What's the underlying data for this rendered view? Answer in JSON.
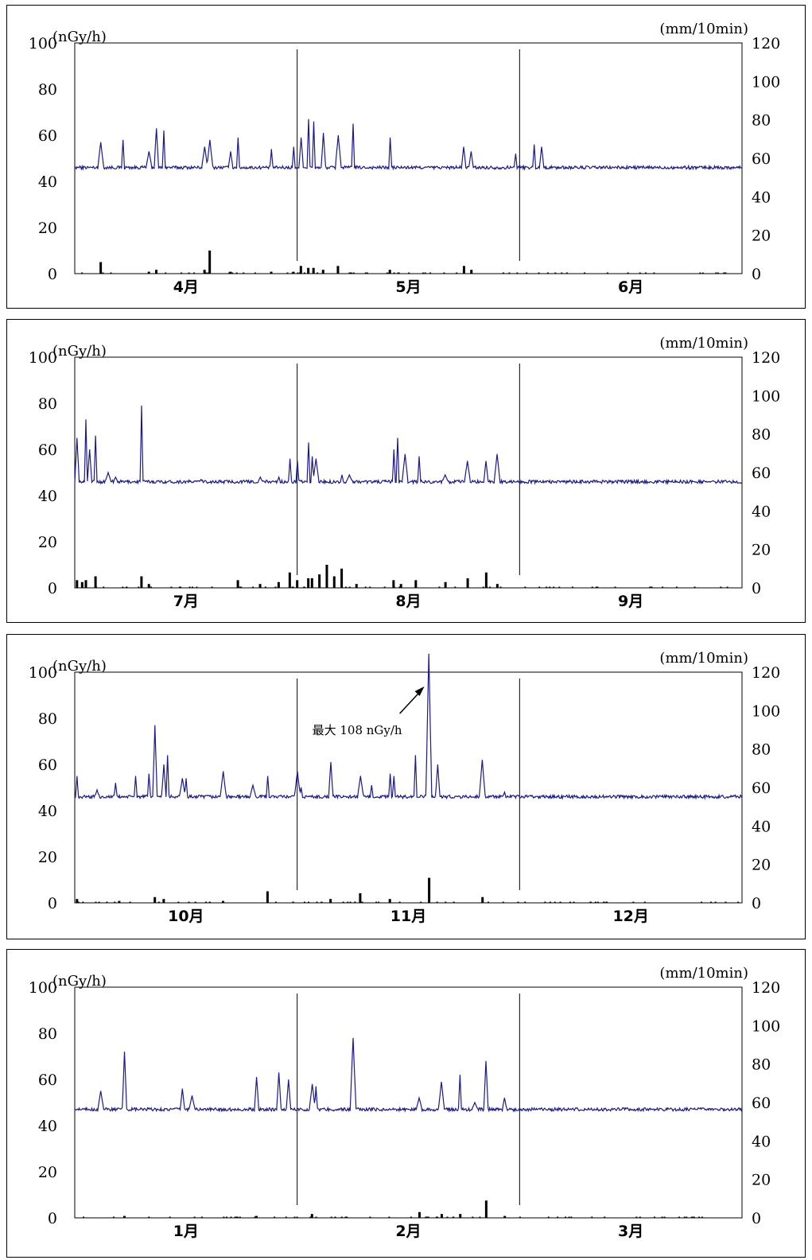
{
  "chart_data": [
    {
      "type": "line",
      "left_unit": "(nGy/h)",
      "right_unit": "(mm/10min)",
      "left_ticks": [
        "100",
        "80",
        "60",
        "40",
        "20",
        "0"
      ],
      "right_ticks": [
        "120",
        "100",
        "80",
        "60",
        "40",
        "20",
        "0"
      ],
      "ylim_left": [
        0,
        100
      ],
      "ylim_right": [
        0,
        120
      ],
      "months": [
        "4月",
        "5月",
        "6月"
      ],
      "colors": {
        "dose": "#1a1a8c",
        "rain": "#000000"
      },
      "baseline": 46,
      "dose_spikes": [
        [
          3.5,
          57
        ],
        [
          6.5,
          58
        ],
        [
          10,
          53
        ],
        [
          11,
          63
        ],
        [
          12,
          62
        ],
        [
          17.5,
          55
        ],
        [
          18.2,
          58
        ],
        [
          21,
          53
        ],
        [
          22,
          59
        ],
        [
          26.5,
          54
        ],
        [
          29.5,
          55
        ],
        [
          30.5,
          59
        ],
        [
          31.5,
          67
        ],
        [
          32.2,
          66
        ],
        [
          33.5,
          61
        ],
        [
          35.5,
          60
        ],
        [
          37.5,
          65
        ],
        [
          42.5,
          59
        ],
        [
          52.5,
          55
        ],
        [
          53.5,
          53
        ],
        [
          59.5,
          52
        ],
        [
          62,
          56
        ],
        [
          63,
          55
        ]
      ],
      "rain": [
        [
          3.5,
          6
        ],
        [
          10,
          1
        ],
        [
          11,
          2
        ],
        [
          17.5,
          2
        ],
        [
          18.2,
          12
        ],
        [
          21,
          1
        ],
        [
          26.5,
          1
        ],
        [
          29.5,
          1
        ],
        [
          30.5,
          4
        ],
        [
          31.5,
          3
        ],
        [
          32.2,
          3
        ],
        [
          33.5,
          2
        ],
        [
          35.5,
          4
        ],
        [
          42.5,
          2
        ],
        [
          52.5,
          4
        ],
        [
          53.5,
          2
        ]
      ],
      "vlines": [
        30,
        60
      ]
    },
    {
      "type": "line",
      "left_unit": "(nGy/h)",
      "right_unit": "(mm/10min)",
      "left_ticks": [
        "100",
        "80",
        "60",
        "40",
        "20",
        "0"
      ],
      "right_ticks": [
        "120",
        "100",
        "80",
        "60",
        "40",
        "20",
        "0"
      ],
      "ylim_left": [
        0,
        100
      ],
      "ylim_right": [
        0,
        120
      ],
      "months": [
        "7月",
        "8月",
        "9月"
      ],
      "colors": {
        "dose": "#1a1a8c",
        "rain": "#000000"
      },
      "baseline": 46,
      "dose_spikes": [
        [
          0.3,
          65
        ],
        [
          1.5,
          73
        ],
        [
          2,
          60
        ],
        [
          2.8,
          66
        ],
        [
          4.5,
          50
        ],
        [
          5.5,
          48
        ],
        [
          9,
          79
        ],
        [
          17,
          47
        ],
        [
          25,
          48
        ],
        [
          27.5,
          48
        ],
        [
          29,
          56
        ],
        [
          30,
          55
        ],
        [
          31.5,
          63
        ],
        [
          32,
          57
        ],
        [
          32.5,
          56
        ],
        [
          36,
          49
        ],
        [
          37,
          49
        ],
        [
          43,
          60
        ],
        [
          43.5,
          65
        ],
        [
          44.5,
          58
        ],
        [
          46.5,
          57
        ],
        [
          50,
          49
        ],
        [
          53,
          55
        ],
        [
          55.5,
          55
        ],
        [
          57,
          58
        ]
      ],
      "rain": [
        [
          0.3,
          4
        ],
        [
          1,
          3
        ],
        [
          1.5,
          4
        ],
        [
          2.8,
          6
        ],
        [
          9,
          6
        ],
        [
          10,
          2
        ],
        [
          22,
          4
        ],
        [
          25,
          2
        ],
        [
          27.5,
          3
        ],
        [
          29,
          8
        ],
        [
          30,
          4
        ],
        [
          31.5,
          5
        ],
        [
          32,
          5
        ],
        [
          33,
          7
        ],
        [
          34,
          12
        ],
        [
          35,
          6
        ],
        [
          36,
          10
        ],
        [
          38,
          2
        ],
        [
          43,
          4
        ],
        [
          44,
          2
        ],
        [
          46,
          4
        ],
        [
          50,
          3
        ],
        [
          53,
          5
        ],
        [
          55.5,
          8
        ],
        [
          57,
          2
        ]
      ],
      "vlines": [
        30,
        60
      ]
    },
    {
      "type": "line",
      "left_unit": "(nGy/h)",
      "right_unit": "(mm/10min)",
      "left_ticks": [
        "100",
        "80",
        "60",
        "40",
        "20",
        "0"
      ],
      "right_ticks": [
        "120",
        "100",
        "80",
        "60",
        "40",
        "20",
        "0"
      ],
      "ylim_left": [
        0,
        100
      ],
      "ylim_right": [
        0,
        120
      ],
      "months": [
        "10月",
        "11月",
        "12月"
      ],
      "colors": {
        "dose": "#1a1a8c",
        "rain": "#000000"
      },
      "baseline": 46,
      "dose_spikes": [
        [
          0.3,
          55
        ],
        [
          3,
          49
        ],
        [
          5.5,
          52
        ],
        [
          8.2,
          55
        ],
        [
          10,
          56
        ],
        [
          10.8,
          77
        ],
        [
          12,
          60
        ],
        [
          12.5,
          64
        ],
        [
          14.5,
          54
        ],
        [
          15,
          54
        ],
        [
          20,
          57
        ],
        [
          24,
          51
        ],
        [
          26,
          55
        ],
        [
          30,
          57
        ],
        [
          30.5,
          50
        ],
        [
          34.5,
          61
        ],
        [
          38.5,
          55
        ],
        [
          40,
          51
        ],
        [
          42.5,
          56
        ],
        [
          43,
          55
        ],
        [
          46,
          64
        ],
        [
          47.8,
          108
        ],
        [
          49,
          60
        ],
        [
          55,
          62
        ],
        [
          58,
          48
        ]
      ],
      "rain": [
        [
          0.3,
          2
        ],
        [
          6,
          1
        ],
        [
          10.8,
          3
        ],
        [
          12,
          2
        ],
        [
          20,
          1
        ],
        [
          26,
          6
        ],
        [
          34.5,
          2
        ],
        [
          38.5,
          5
        ],
        [
          42.5,
          2
        ],
        [
          47.8,
          13
        ],
        [
          55,
          3
        ]
      ],
      "vlines": [
        30,
        60
      ],
      "annotation": "最大 108 nGy/h"
    },
    {
      "type": "line",
      "left_unit": "(nGy/h)",
      "right_unit": "(mm/10min)",
      "left_ticks": [
        "100",
        "80",
        "60",
        "40",
        "20",
        "0"
      ],
      "right_ticks": [
        "120",
        "100",
        "80",
        "60",
        "40",
        "20",
        "0"
      ],
      "ylim_left": [
        0,
        100
      ],
      "ylim_right": [
        0,
        120
      ],
      "months": [
        "1月",
        "2月",
        "3月"
      ],
      "colors": {
        "dose": "#1a1a8c",
        "rain": "#000000"
      },
      "baseline": 47,
      "dose_spikes": [
        [
          3.5,
          55
        ],
        [
          6.7,
          72
        ],
        [
          14.5,
          56
        ],
        [
          15.8,
          53
        ],
        [
          24.5,
          61
        ],
        [
          27.5,
          63
        ],
        [
          28.8,
          60
        ],
        [
          32,
          58
        ],
        [
          32.5,
          57
        ],
        [
          37.5,
          78
        ],
        [
          46.5,
          52
        ],
        [
          49.5,
          59
        ],
        [
          52,
          62
        ],
        [
          54,
          50
        ],
        [
          55.5,
          68
        ],
        [
          58,
          52
        ]
      ],
      "rain": [
        [
          6.7,
          1
        ],
        [
          24.5,
          1
        ],
        [
          32,
          2
        ],
        [
          46.5,
          3
        ],
        [
          49.5,
          2
        ],
        [
          52,
          2
        ],
        [
          55.5,
          9
        ],
        [
          58,
          1
        ]
      ],
      "vlines": [
        30,
        60
      ]
    }
  ]
}
